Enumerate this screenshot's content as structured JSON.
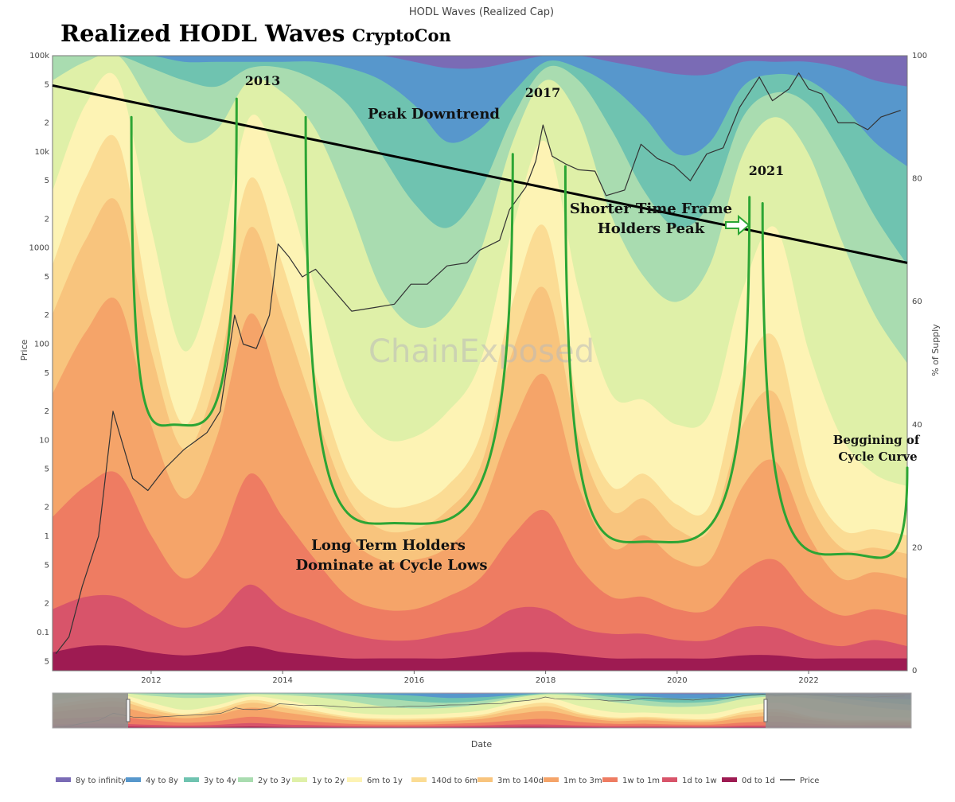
{
  "chart_data": {
    "type": "area",
    "title": "HODL Waves (Realized Cap)",
    "overlay_title": "Realized HODL Waves",
    "overlay_author": "CryptoCon",
    "watermark": "ChainExposed",
    "xlabel": "Date",
    "ylabel_left": "Price",
    "ylabel_right": "% of Supply",
    "x_range": [
      "2010-07",
      "2023-05"
    ],
    "x_ticks": [
      "2012",
      "2014",
      "2016",
      "2018",
      "2020",
      "2022"
    ],
    "y_left_scale": "log",
    "y_left_range": [
      0.04,
      100000
    ],
    "y_left_major_ticks": [
      "100k",
      "10k",
      "1000",
      "100",
      "10",
      "1",
      "0.1"
    ],
    "y_left_minor_ticks": [
      "5",
      "2"
    ],
    "y_right_range": [
      0,
      100
    ],
    "y_right_ticks": [
      "100",
      "80",
      "60",
      "40",
      "20",
      "0"
    ],
    "x_years": [
      2010.5,
      2011.0,
      2011.5,
      2012.0,
      2012.5,
      2013.0,
      2013.5,
      2014.0,
      2014.5,
      2015.0,
      2015.5,
      2016.0,
      2016.5,
      2017.0,
      2017.5,
      2018.0,
      2018.5,
      2019.0,
      2019.5,
      2020.0,
      2020.5,
      2021.0,
      2021.5,
      2022.0,
      2022.5,
      2023.0,
      2023.5
    ],
    "series": [
      {
        "name": "0d to 1d",
        "color": "#9e1b52",
        "values": [
          3,
          4,
          4,
          3,
          2.5,
          3,
          4,
          3,
          2.5,
          2,
          2,
          2,
          2,
          2.5,
          3,
          3,
          2.5,
          2,
          2,
          2,
          2,
          2.5,
          2.5,
          2,
          2,
          2,
          2
        ]
      },
      {
        "name": "1d to 1w",
        "color": "#d8546a",
        "values": [
          10,
          12,
          12,
          9,
          7,
          9,
          14,
          10,
          8,
          6,
          5,
          5,
          6,
          7,
          10,
          10,
          7,
          6,
          6,
          5,
          5,
          7,
          7,
          5,
          4,
          5,
          4
        ]
      },
      {
        "name": "1w to 1m",
        "color": "#ee7c62",
        "values": [
          25,
          30,
          32,
          22,
          15,
          20,
          32,
          25,
          18,
          12,
          10,
          10,
          12,
          15,
          22,
          26,
          17,
          12,
          12,
          10,
          10,
          16,
          18,
          12,
          9,
          10,
          9
        ]
      },
      {
        "name": "1m to 3m",
        "color": "#f5a469",
        "values": [
          45,
          55,
          60,
          40,
          28,
          38,
          58,
          45,
          32,
          22,
          18,
          18,
          20,
          26,
          40,
          48,
          30,
          20,
          22,
          18,
          18,
          30,
          34,
          22,
          15,
          16,
          15
        ]
      },
      {
        "name": "3m to 140d",
        "color": "#f8c47d",
        "values": [
          58,
          70,
          76,
          52,
          36,
          48,
          72,
          58,
          42,
          28,
          23,
          23,
          26,
          33,
          52,
          62,
          38,
          26,
          28,
          23,
          23,
          40,
          45,
          28,
          20,
          20,
          19
        ]
      },
      {
        "name": "140d to 6m",
        "color": "#fbdc94",
        "values": [
          66,
          80,
          86,
          58,
          40,
          55,
          80,
          66,
          48,
          32,
          27,
          27,
          30,
          38,
          60,
          72,
          43,
          30,
          32,
          27,
          27,
          48,
          54,
          32,
          23,
          23,
          22
        ]
      },
      {
        "name": "6m to 1y",
        "color": "#fdf3b4",
        "values": [
          78,
          92,
          96,
          72,
          52,
          66,
          90,
          80,
          62,
          45,
          38,
          38,
          42,
          50,
          72,
          86,
          62,
          45,
          44,
          40,
          42,
          62,
          72,
          52,
          38,
          32,
          30
        ]
      },
      {
        "name": "1y to 2y",
        "color": "#dff0a8",
        "values": [
          96,
          99,
          100,
          92,
          86,
          88,
          96,
          94,
          88,
          76,
          62,
          56,
          58,
          68,
          86,
          96,
          90,
          74,
          64,
          60,
          66,
          84,
          90,
          84,
          70,
          58,
          50
        ]
      },
      {
        "name": "2y to 3y",
        "color": "#a9dcb0",
        "values": [
          100,
          100,
          100,
          98,
          96,
          95,
          98,
          98,
          96,
          92,
          84,
          76,
          72,
          78,
          90,
          98,
          96,
          88,
          78,
          72,
          76,
          90,
          94,
          92,
          84,
          74,
          66
        ]
      },
      {
        "name": "3y to 4y",
        "color": "#6fc3b0",
        "values": [
          100,
          100,
          100,
          100,
          99,
          99,
          99,
          99,
          99,
          98,
          96,
          92,
          86,
          88,
          94,
          99,
          98,
          95,
          90,
          84,
          86,
          95,
          97,
          96,
          92,
          86,
          82
        ]
      },
      {
        "name": "4y to 8y",
        "color": "#5797cc",
        "values": [
          100,
          100,
          100,
          100,
          100,
          100,
          100,
          100,
          100,
          100,
          100,
          99,
          98,
          98,
          99,
          100,
          100,
          99,
          98,
          97,
          97,
          99,
          99,
          99,
          98,
          96,
          95
        ]
      },
      {
        "name": "8y to infinity",
        "color": "#7a6bb5",
        "values": [
          100,
          100,
          100,
          100,
          100,
          100,
          100,
          100,
          100,
          100,
          100,
          100,
          100,
          100,
          100,
          100,
          100,
          100,
          100,
          100,
          100,
          100,
          100,
          100,
          100,
          100,
          100
        ]
      }
    ],
    "price_series": {
      "name": "Price",
      "color": "#333333",
      "points": [
        [
          2010.55,
          0.06
        ],
        [
          2010.75,
          0.09
        ],
        [
          2010.95,
          0.3
        ],
        [
          2011.2,
          1
        ],
        [
          2011.42,
          20
        ],
        [
          2011.55,
          10
        ],
        [
          2011.72,
          4
        ],
        [
          2011.95,
          3
        ],
        [
          2012.2,
          5
        ],
        [
          2012.5,
          8
        ],
        [
          2012.85,
          12
        ],
        [
          2013.05,
          20
        ],
        [
          2013.27,
          200
        ],
        [
          2013.4,
          100
        ],
        [
          2013.6,
          90
        ],
        [
          2013.8,
          200
        ],
        [
          2013.93,
          1100
        ],
        [
          2014.1,
          800
        ],
        [
          2014.3,
          500
        ],
        [
          2014.5,
          600
        ],
        [
          2014.75,
          380
        ],
        [
          2015.05,
          220
        ],
        [
          2015.4,
          240
        ],
        [
          2015.7,
          260
        ],
        [
          2015.95,
          420
        ],
        [
          2016.2,
          420
        ],
        [
          2016.5,
          650
        ],
        [
          2016.8,
          700
        ],
        [
          2017.0,
          950
        ],
        [
          2017.3,
          1200
        ],
        [
          2017.45,
          2500
        ],
        [
          2017.7,
          4300
        ],
        [
          2017.85,
          8000
        ],
        [
          2017.96,
          19000
        ],
        [
          2018.1,
          9000
        ],
        [
          2018.3,
          7500
        ],
        [
          2018.5,
          6500
        ],
        [
          2018.75,
          6300
        ],
        [
          2018.92,
          3500
        ],
        [
          2019.2,
          4000
        ],
        [
          2019.45,
          12000
        ],
        [
          2019.7,
          8500
        ],
        [
          2019.95,
          7200
        ],
        [
          2020.2,
          5000
        ],
        [
          2020.45,
          9500
        ],
        [
          2020.7,
          11000
        ],
        [
          2020.95,
          29000
        ],
        [
          2021.25,
          60000
        ],
        [
          2021.45,
          34000
        ],
        [
          2021.7,
          45000
        ],
        [
          2021.85,
          66000
        ],
        [
          2022.0,
          45000
        ],
        [
          2022.2,
          40000
        ],
        [
          2022.45,
          20000
        ],
        [
          2022.7,
          20000
        ],
        [
          2022.9,
          17000
        ],
        [
          2023.1,
          23000
        ],
        [
          2023.4,
          27000
        ]
      ]
    },
    "cycle_curves": [
      {
        "name": "cycle-1",
        "color": "#2ca534",
        "points": [
          [
            2011.7,
            90
          ],
          [
            2012.35,
            40
          ],
          [
            2013.3,
            93
          ]
        ]
      },
      {
        "name": "cycle-2",
        "color": "#2ca534",
        "points": [
          [
            2014.35,
            90
          ],
          [
            2015.7,
            24
          ],
          [
            2017.5,
            84
          ]
        ]
      },
      {
        "name": "cycle-3",
        "color": "#2ca534",
        "points": [
          [
            2018.3,
            82
          ],
          [
            2019.55,
            21
          ],
          [
            2021.1,
            77
          ]
        ]
      },
      {
        "name": "cycle-4",
        "color": "#2ca534",
        "points": [
          [
            2021.3,
            76
          ],
          [
            2022.6,
            19
          ],
          [
            2023.5,
            33
          ]
        ]
      }
    ],
    "peak_downtrend_line": {
      "start": [
        2010.5,
        49000
      ],
      "end": [
        2023.5,
        700
      ]
    },
    "annotations": {
      "label_2013": "2013",
      "label_2017": "2017",
      "label_2021": "2021",
      "peak_downtrend": "Peak Downtrend",
      "shorter_line1": "Shorter Time Frame",
      "shorter_line2": "Holders Peak",
      "long_line1": "Long Term Holders",
      "long_line2": "Dominate at Cycle Lows",
      "beginning_line1": "Beggining of",
      "beginning_line2": "Cycle Curve"
    },
    "legend_placement": "bottom",
    "legend": [
      {
        "label": "8y to infinity",
        "color": "#7a6bb5",
        "kind": "area"
      },
      {
        "label": "4y to 8y",
        "color": "#5797cc",
        "kind": "area"
      },
      {
        "label": "3y to 4y",
        "color": "#6fc3b0",
        "kind": "area"
      },
      {
        "label": "2y to 3y",
        "color": "#a9dcb0",
        "kind": "area"
      },
      {
        "label": "1y to 2y",
        "color": "#dff0a8",
        "kind": "area"
      },
      {
        "label": "6m to 1y",
        "color": "#fdf3b4",
        "kind": "area"
      },
      {
        "label": "140d to 6m",
        "color": "#fbdc94",
        "kind": "area"
      },
      {
        "label": "3m to 140d",
        "color": "#f8c47d",
        "kind": "area"
      },
      {
        "label": "1m to 3m",
        "color": "#f5a469",
        "kind": "area"
      },
      {
        "label": "1w to 1m",
        "color": "#ee7c62",
        "kind": "area"
      },
      {
        "label": "1d to 1w",
        "color": "#d8546a",
        "kind": "area"
      },
      {
        "label": "0d to 1d",
        "color": "#9e1b52",
        "kind": "area"
      },
      {
        "label": "Price",
        "color": "#333333",
        "kind": "line"
      }
    ]
  }
}
